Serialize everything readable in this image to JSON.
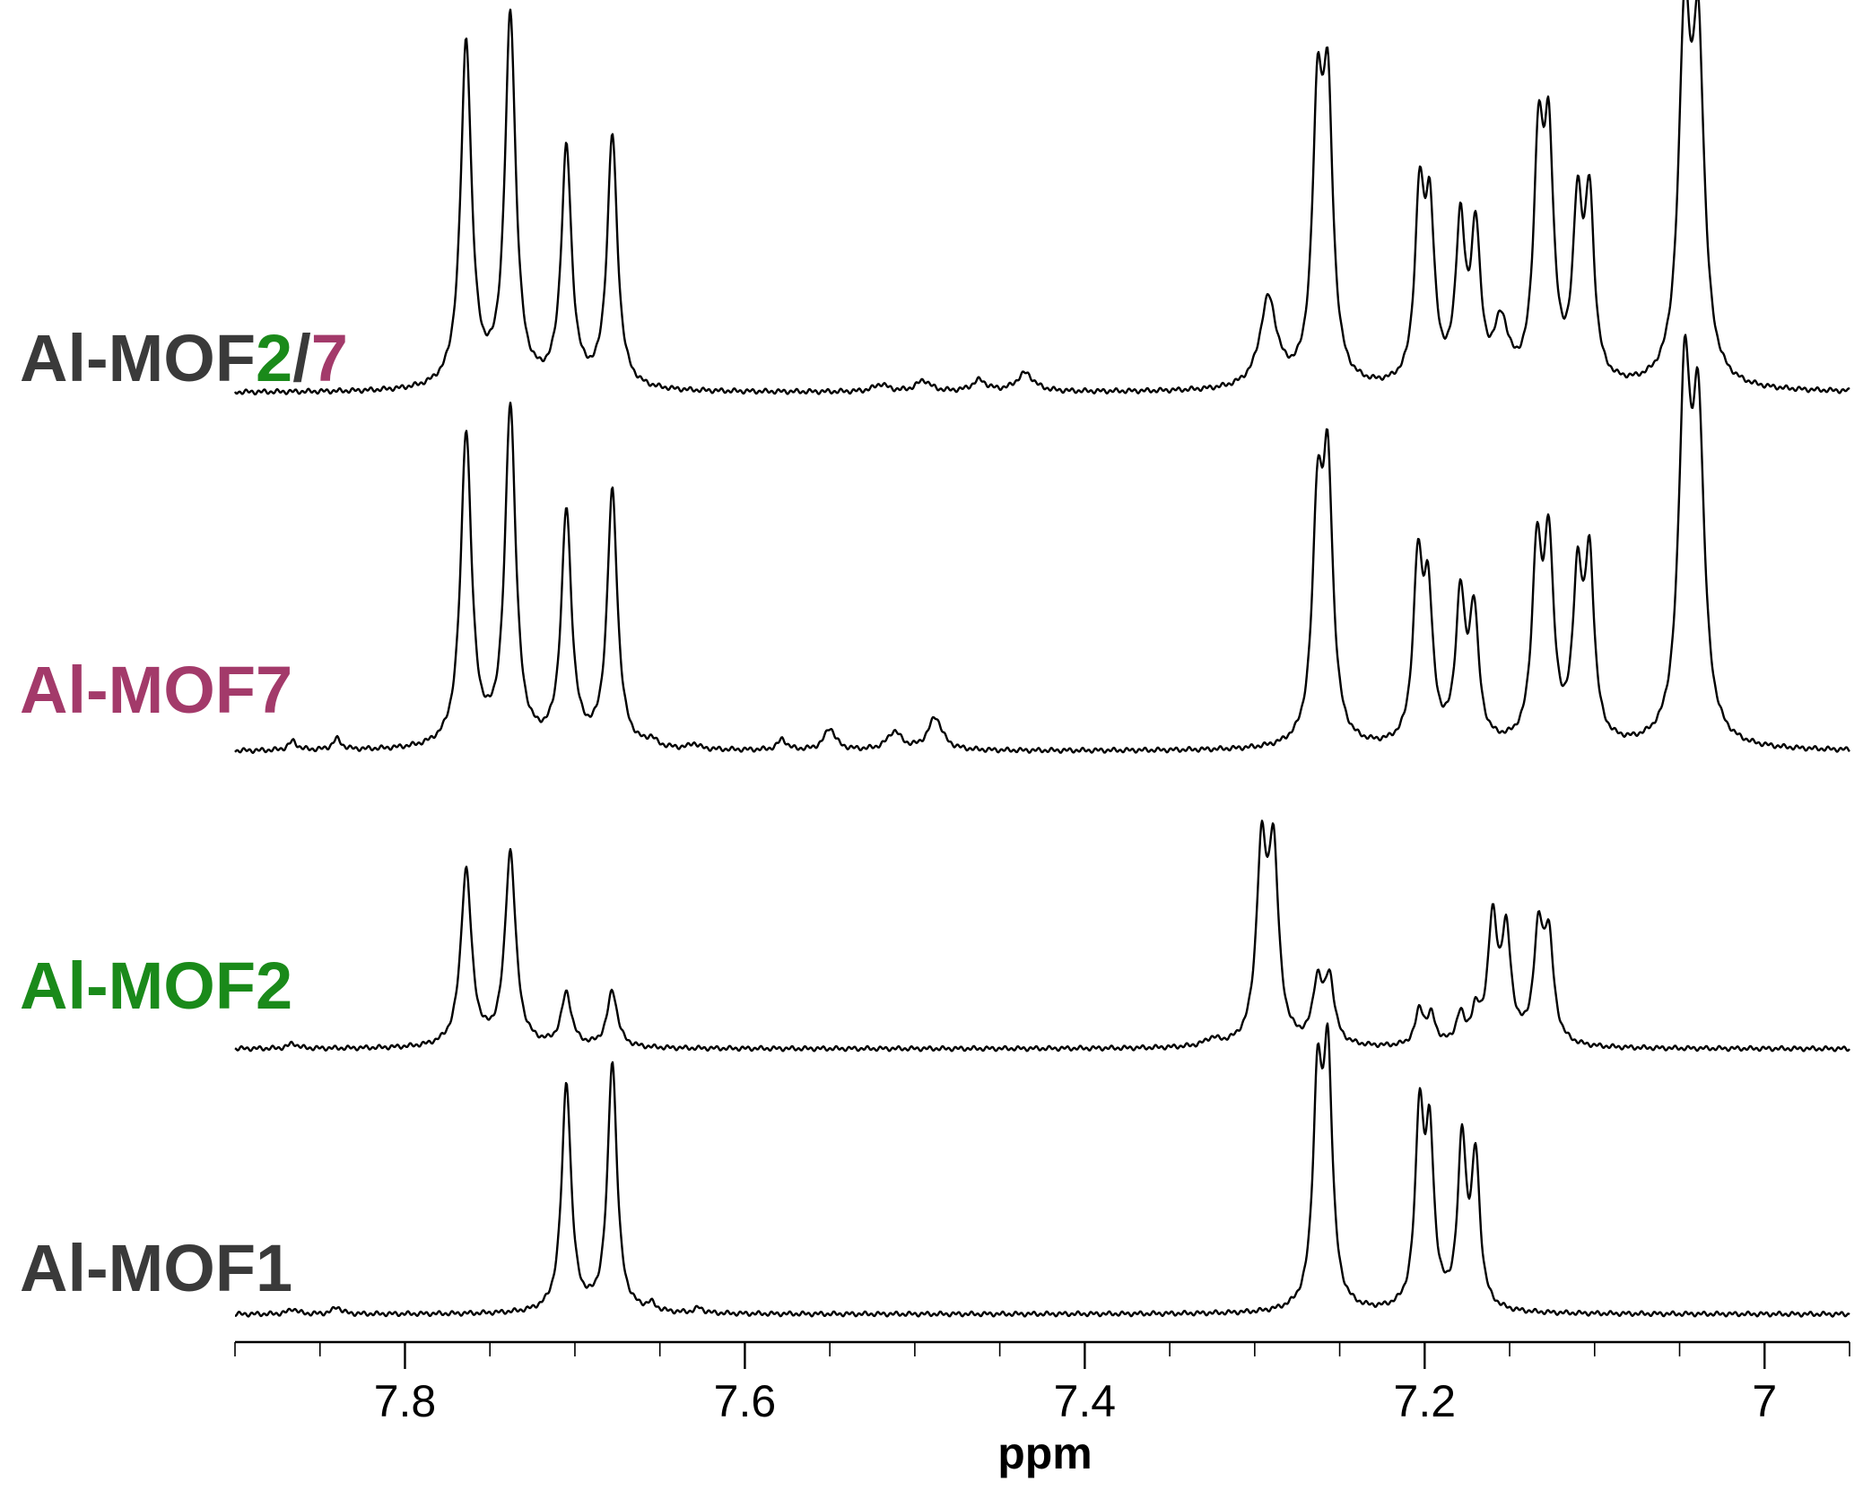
{
  "colors": {
    "dark_gray": "#3a3a3a",
    "green": "#1a8a1a",
    "magenta": "#a33a6a",
    "trace": "#000000"
  },
  "chart_data": {
    "type": "line",
    "title": "",
    "xlabel": "ppm",
    "ylabel": "",
    "x_reversed": true,
    "xlim": [
      7.9,
      6.95
    ],
    "x_ticks": [
      7.8,
      7.6,
      7.4,
      7.2,
      7
    ],
    "x_tick_labels": [
      "7.8",
      "7.6",
      "7.4",
      "7.2",
      "7"
    ],
    "grid": false,
    "legend": "none",
    "series": [
      {
        "label_parts": [
          {
            "text": "Al-MOF",
            "color": "#3a3a3a"
          },
          {
            "text": "2",
            "color": "#1a8a1a"
          },
          {
            "text": "/",
            "color": "#3a3a3a"
          },
          {
            "text": "7",
            "color": "#a33a6a"
          }
        ],
        "peaks": [
          {
            "ppm": 7.764,
            "height": 0.93,
            "width": 0.0038
          },
          {
            "ppm": 7.738,
            "height": 1.0,
            "width": 0.0038
          },
          {
            "ppm": 7.705,
            "height": 0.64,
            "width": 0.0036
          },
          {
            "ppm": 7.678,
            "height": 0.68,
            "width": 0.0036
          },
          {
            "ppm": 7.52,
            "height": 0.02,
            "width": 0.005
          },
          {
            "ppm": 7.495,
            "height": 0.03,
            "width": 0.005
          },
          {
            "ppm": 7.462,
            "height": 0.03,
            "width": 0.005
          },
          {
            "ppm": 7.435,
            "height": 0.05,
            "width": 0.006
          },
          {
            "ppm": 7.292,
            "height": 0.24,
            "width": 0.006
          },
          {
            "ppm": 7.263,
            "height": 0.7,
            "width": 0.0036
          },
          {
            "ppm": 7.257,
            "height": 0.72,
            "width": 0.0036
          },
          {
            "ppm": 7.203,
            "height": 0.48,
            "width": 0.0033
          },
          {
            "ppm": 7.197,
            "height": 0.43,
            "width": 0.0033
          },
          {
            "ppm": 7.179,
            "height": 0.42,
            "width": 0.0033
          },
          {
            "ppm": 7.17,
            "height": 0.4,
            "width": 0.0033
          },
          {
            "ppm": 7.155,
            "height": 0.16,
            "width": 0.005
          },
          {
            "ppm": 7.133,
            "height": 0.6,
            "width": 0.0034
          },
          {
            "ppm": 7.127,
            "height": 0.6,
            "width": 0.0034
          },
          {
            "ppm": 7.11,
            "height": 0.45,
            "width": 0.0033
          },
          {
            "ppm": 7.103,
            "height": 0.47,
            "width": 0.0033
          },
          {
            "ppm": 7.047,
            "height": 0.92,
            "width": 0.0042
          },
          {
            "ppm": 7.039,
            "height": 0.86,
            "width": 0.0042
          }
        ]
      },
      {
        "label_parts": [
          {
            "text": "Al-MOF7",
            "color": "#a33a6a"
          }
        ],
        "peaks": [
          {
            "ppm": 7.866,
            "height": 0.025,
            "width": 0.003
          },
          {
            "ppm": 7.84,
            "height": 0.03,
            "width": 0.003
          },
          {
            "ppm": 7.764,
            "height": 0.86,
            "width": 0.0038
          },
          {
            "ppm": 7.738,
            "height": 0.93,
            "width": 0.0038
          },
          {
            "ppm": 7.705,
            "height": 0.64,
            "width": 0.0036
          },
          {
            "ppm": 7.678,
            "height": 0.7,
            "width": 0.0036
          },
          {
            "ppm": 7.655,
            "height": 0.02,
            "width": 0.003
          },
          {
            "ppm": 7.63,
            "height": 0.015,
            "width": 0.003
          },
          {
            "ppm": 7.578,
            "height": 0.03,
            "width": 0.003
          },
          {
            "ppm": 7.55,
            "height": 0.06,
            "width": 0.004
          },
          {
            "ppm": 7.512,
            "height": 0.05,
            "width": 0.005
          },
          {
            "ppm": 7.488,
            "height": 0.09,
            "width": 0.005
          },
          {
            "ppm": 7.263,
            "height": 0.61,
            "width": 0.0036
          },
          {
            "ppm": 7.257,
            "height": 0.7,
            "width": 0.0036
          },
          {
            "ppm": 7.204,
            "height": 0.47,
            "width": 0.0033
          },
          {
            "ppm": 7.198,
            "height": 0.38,
            "width": 0.0033
          },
          {
            "ppm": 7.179,
            "height": 0.39,
            "width": 0.0033
          },
          {
            "ppm": 7.171,
            "height": 0.35,
            "width": 0.0033
          },
          {
            "ppm": 7.134,
            "height": 0.5,
            "width": 0.0034
          },
          {
            "ppm": 7.127,
            "height": 0.52,
            "width": 0.0034
          },
          {
            "ppm": 7.11,
            "height": 0.43,
            "width": 0.0033
          },
          {
            "ppm": 7.103,
            "height": 0.48,
            "width": 0.0033
          },
          {
            "ppm": 7.047,
            "height": 0.95,
            "width": 0.0042
          },
          {
            "ppm": 7.039,
            "height": 0.83,
            "width": 0.0042
          }
        ]
      },
      {
        "label_parts": [
          {
            "text": "Al-MOF2",
            "color": "#1a8a1a"
          }
        ],
        "peaks": [
          {
            "ppm": 7.866,
            "height": 0.015,
            "width": 0.003
          },
          {
            "ppm": 7.764,
            "height": 0.5,
            "width": 0.0038
          },
          {
            "ppm": 7.738,
            "height": 0.55,
            "width": 0.0038
          },
          {
            "ppm": 7.705,
            "height": 0.15,
            "width": 0.0036
          },
          {
            "ppm": 7.678,
            "height": 0.16,
            "width": 0.0036
          },
          {
            "ppm": 7.325,
            "height": 0.02,
            "width": 0.005
          },
          {
            "ppm": 7.296,
            "height": 0.52,
            "width": 0.0036
          },
          {
            "ppm": 7.289,
            "height": 0.52,
            "width": 0.0036
          },
          {
            "ppm": 7.263,
            "height": 0.17,
            "width": 0.0034
          },
          {
            "ppm": 7.256,
            "height": 0.18,
            "width": 0.0034
          },
          {
            "ppm": 7.203,
            "height": 0.1,
            "width": 0.003
          },
          {
            "ppm": 7.196,
            "height": 0.08,
            "width": 0.003
          },
          {
            "ppm": 7.179,
            "height": 0.08,
            "width": 0.003
          },
          {
            "ppm": 7.17,
            "height": 0.08,
            "width": 0.003
          },
          {
            "ppm": 7.16,
            "height": 0.34,
            "width": 0.0034
          },
          {
            "ppm": 7.152,
            "height": 0.3,
            "width": 0.0034
          },
          {
            "ppm": 7.133,
            "height": 0.3,
            "width": 0.0034
          },
          {
            "ppm": 7.127,
            "height": 0.28,
            "width": 0.0034
          }
        ]
      },
      {
        "label_parts": [
          {
            "text": "Al-MOF1",
            "color": "#3a3a3a"
          }
        ],
        "peaks": [
          {
            "ppm": 7.866,
            "height": 0.015,
            "width": 0.003
          },
          {
            "ppm": 7.84,
            "height": 0.02,
            "width": 0.003
          },
          {
            "ppm": 7.705,
            "height": 0.64,
            "width": 0.0033
          },
          {
            "ppm": 7.678,
            "height": 0.7,
            "width": 0.0033
          },
          {
            "ppm": 7.655,
            "height": 0.02,
            "width": 0.003
          },
          {
            "ppm": 7.627,
            "height": 0.015,
            "width": 0.003
          },
          {
            "ppm": 7.263,
            "height": 0.6,
            "width": 0.0032
          },
          {
            "ppm": 7.257,
            "height": 0.67,
            "width": 0.0032
          },
          {
            "ppm": 7.203,
            "height": 0.53,
            "width": 0.003
          },
          {
            "ppm": 7.197,
            "height": 0.45,
            "width": 0.003
          },
          {
            "ppm": 7.178,
            "height": 0.46,
            "width": 0.003
          },
          {
            "ppm": 7.17,
            "height": 0.41,
            "width": 0.003
          }
        ]
      }
    ]
  }
}
